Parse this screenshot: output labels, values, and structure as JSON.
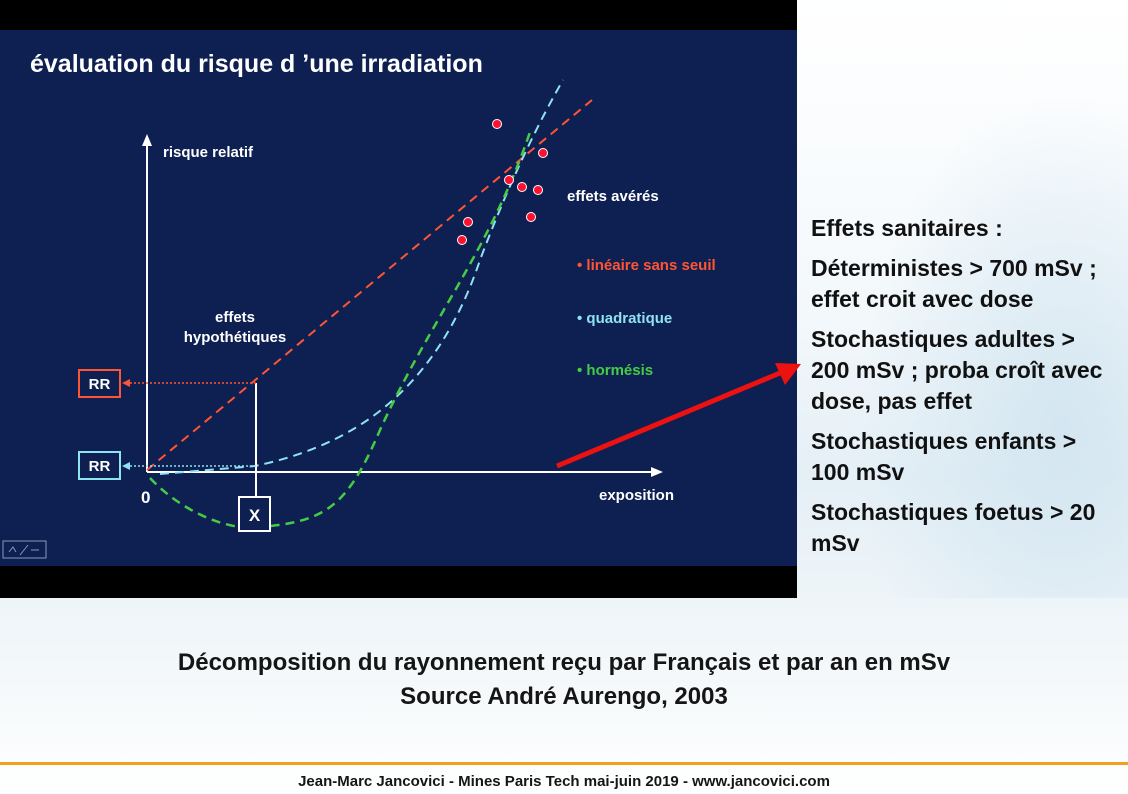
{
  "slide": {
    "title": "évaluation du risque d ’une irradiation",
    "y_axis_label": "risque relatif",
    "x_axis_label": "exposition",
    "origin_label": "0",
    "label_effets_averes": "effets avérés",
    "label_effets_hypothetiques_line1": "effets",
    "label_effets_hypothetiques_line2": "hypothétiques",
    "legend": [
      {
        "text": "• linéaire sans seuil",
        "color": "#ff5533"
      },
      {
        "text": "• quadratique",
        "color": "#8fe3f0"
      },
      {
        "text": "• hormésis",
        "color": "#44cc44"
      }
    ],
    "box_rr_upper": "RR",
    "box_rr_lower": "RR",
    "box_x": "X"
  },
  "effects": {
    "heading": "Effets sanitaires :",
    "items": [
      "Déterministes > 700 mSv ; effet croit avec dose",
      "Stochastiques adultes > 200 mSv ; proba croît avec dose, pas effet",
      "Stochastiques enfants > 100 mSv",
      "Stochastiques foetus > 20 mSv"
    ]
  },
  "caption": {
    "line1": "Décomposition du rayonnement reçu par Français et par an en mSv",
    "line2": "Source André Aurengo, 2003"
  },
  "footer": "Jean-Marc Jancovici - Mines Paris Tech mai-juin 2019 - www.jancovici.com",
  "colors": {
    "panel_background": "#0e1f52",
    "linear": "#ff5533",
    "quadratic": "#8fe3f0",
    "hormesis": "#44cc44",
    "data_points": "#ff1030",
    "arrow": "#ee1111",
    "footer_rule": "#f0a020"
  },
  "icons": {
    "nav_control": "slideshow-control-icon"
  }
}
